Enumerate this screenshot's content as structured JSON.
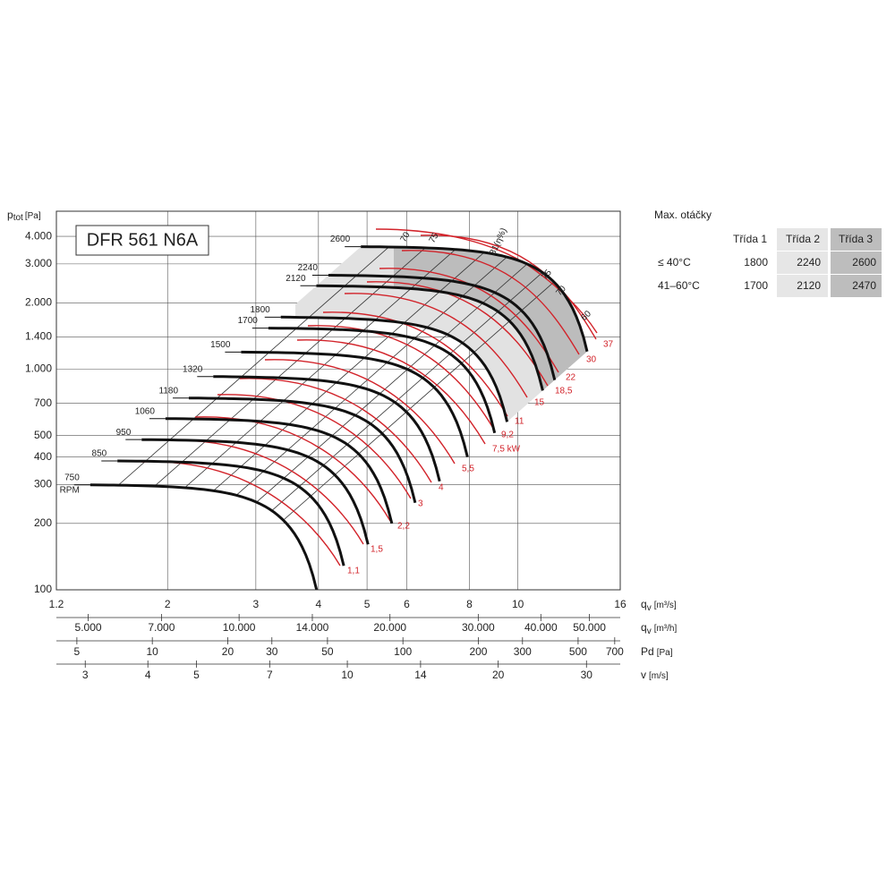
{
  "chart_data": {
    "type": "fan",
    "title": "DFR 561 N6A",
    "y_label": {
      "symbol": "p",
      "sub": "tot",
      "unit": "[Pa]"
    },
    "xlim": [
      1.2,
      16
    ],
    "ylim": [
      100,
      5200
    ],
    "xticks": [
      1.2,
      2,
      3,
      4,
      5,
      6,
      8,
      10,
      16
    ],
    "yticks": [
      {
        "value": 4000,
        "label": "4.000"
      },
      {
        "value": 3000,
        "label": "3.000"
      },
      {
        "value": 2000,
        "label": "2.000"
      },
      {
        "value": 1400,
        "label": "1.400"
      },
      {
        "value": 1000,
        "label": "1.000"
      },
      700,
      500,
      400,
      300,
      200,
      100
    ],
    "x_axes": [
      {
        "symbol": "q",
        "sub": "v",
        "unit": "[m³/s]"
      },
      {
        "symbol": "q",
        "sub": "v",
        "unit": "[m³/h]",
        "ticks": [
          {
            "value": 5000,
            "label": "5.000"
          },
          {
            "value": 7000,
            "label": "7.000"
          },
          {
            "value": 10000,
            "label": "10.000"
          },
          {
            "value": 14000,
            "label": "14.000"
          },
          {
            "value": 20000,
            "label": "20.000"
          },
          {
            "value": 30000,
            "label": "30.000"
          },
          {
            "value": 40000,
            "label": "40.000"
          },
          {
            "value": 50000,
            "label": "50.000"
          }
        ]
      },
      {
        "symbol": "Pd",
        "sub": "",
        "unit": "[Pa]",
        "ticks": [
          5,
          10,
          20,
          30,
          50,
          100,
          200,
          300,
          500,
          700
        ]
      },
      {
        "symbol": "v",
        "sub": "",
        "unit": "[m/s]",
        "ticks": [
          3,
          4,
          5,
          7,
          10,
          14,
          20,
          30
        ]
      }
    ],
    "speeds": [
      750,
      850,
      950,
      1060,
      1180,
      1320,
      1500,
      1700,
      1800,
      2120,
      2240,
      2600
    ],
    "speed_unit": "RPM",
    "power_labels": [
      "1,1",
      "1,5",
      "2,2",
      "3",
      "4",
      "5,5",
      "7,5 kW",
      "9,2",
      "11",
      "15",
      "18,5",
      "22",
      "30",
      "37"
    ],
    "efficiency_labels": [
      "70",
      "75",
      "81(η%)",
      "75",
      "70",
      "60"
    ]
  },
  "speed_table": {
    "title": "Max. otáčky",
    "headers": [
      "Třída 1",
      "Třída 2",
      "Třída 3"
    ],
    "rows": [
      [
        "≤ 40°C",
        "1800",
        "2240",
        "2600"
      ],
      [
        "41–60°C",
        "1700",
        "2120",
        "2470"
      ]
    ]
  }
}
